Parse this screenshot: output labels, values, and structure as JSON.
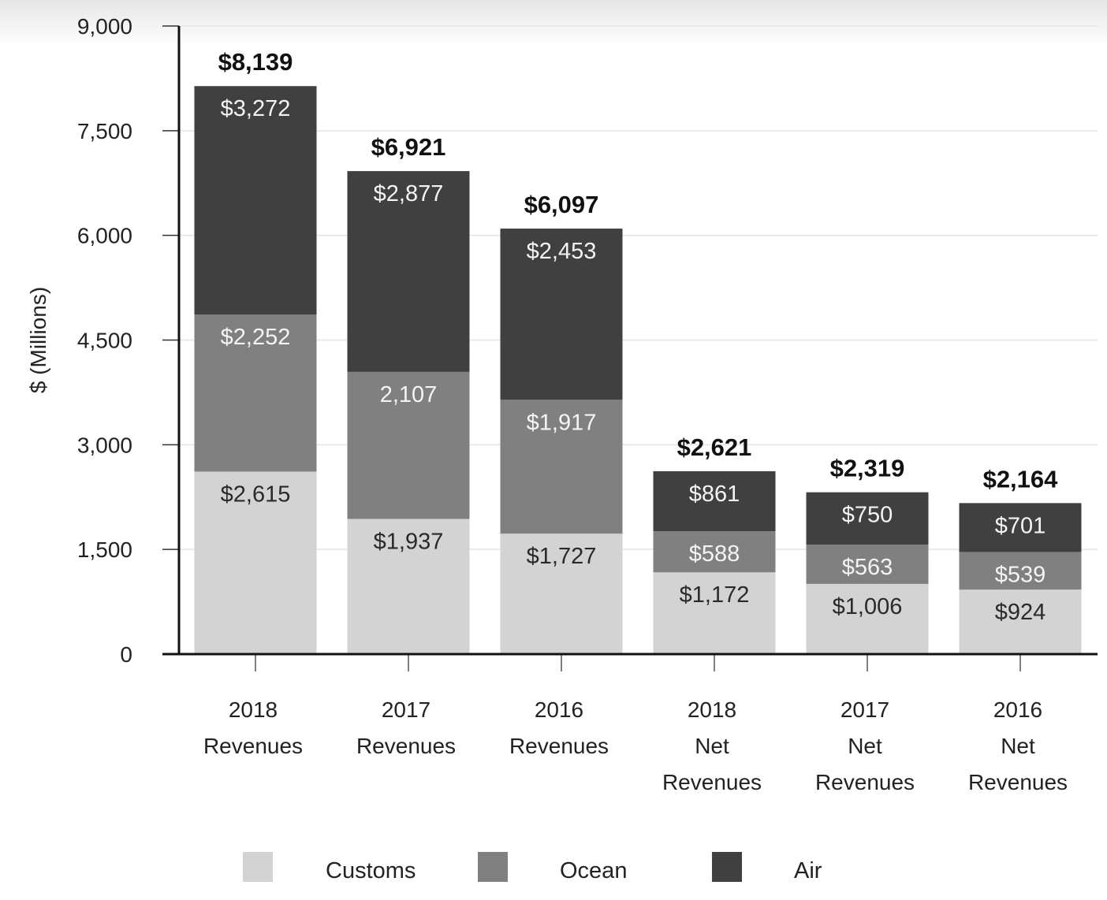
{
  "chart_data": {
    "type": "bar",
    "stacked": true,
    "ylabel": "$ (Millions)",
    "xlabel": "",
    "ylim": [
      0,
      9000
    ],
    "yticks": [
      0,
      1500,
      3000,
      4500,
      6000,
      7500,
      9000
    ],
    "ytick_labels": [
      "0",
      "1,500",
      "3,000",
      "4,500",
      "6,000",
      "7,500",
      "9,000"
    ],
    "grid": true,
    "legend_position": "bottom",
    "categories": [
      [
        "2018",
        "Revenues"
      ],
      [
        "2017",
        "Revenues"
      ],
      [
        "2016",
        "Revenues"
      ],
      [
        "2018",
        "Net",
        "Revenues"
      ],
      [
        "2017",
        "Net",
        "Revenues"
      ],
      [
        "2016",
        "Net",
        "Revenues"
      ]
    ],
    "series": [
      {
        "name": "Customs",
        "color": "#d3d3d3",
        "label_color": "#2a2a2a",
        "values": [
          2615,
          1937,
          1727,
          1172,
          1006,
          924
        ],
        "labels": [
          "$2,615",
          "$1,937",
          "$1,727",
          "$1,172",
          "$1,006",
          "$924"
        ]
      },
      {
        "name": "Ocean",
        "color": "#808080",
        "label_color": "#f4f4f4",
        "values": [
          2252,
          2107,
          1917,
          588,
          563,
          539
        ],
        "labels": [
          "$2,252",
          "2,107",
          "$1,917",
          "$588",
          "$563",
          "$539"
        ]
      },
      {
        "name": "Air",
        "color": "#404040",
        "label_color": "#f4f4f4",
        "values": [
          3272,
          2877,
          2453,
          861,
          750,
          701
        ],
        "labels": [
          "$3,272",
          "$2,877",
          "$2,453",
          "$861",
          "$750",
          "$701"
        ]
      }
    ],
    "totals": [
      8139,
      6921,
      6097,
      2621,
      2319,
      2164
    ],
    "total_labels": [
      "$8,139",
      "$6,921",
      "$6,097",
      "$2,621",
      "$2,319",
      "$2,164"
    ]
  }
}
